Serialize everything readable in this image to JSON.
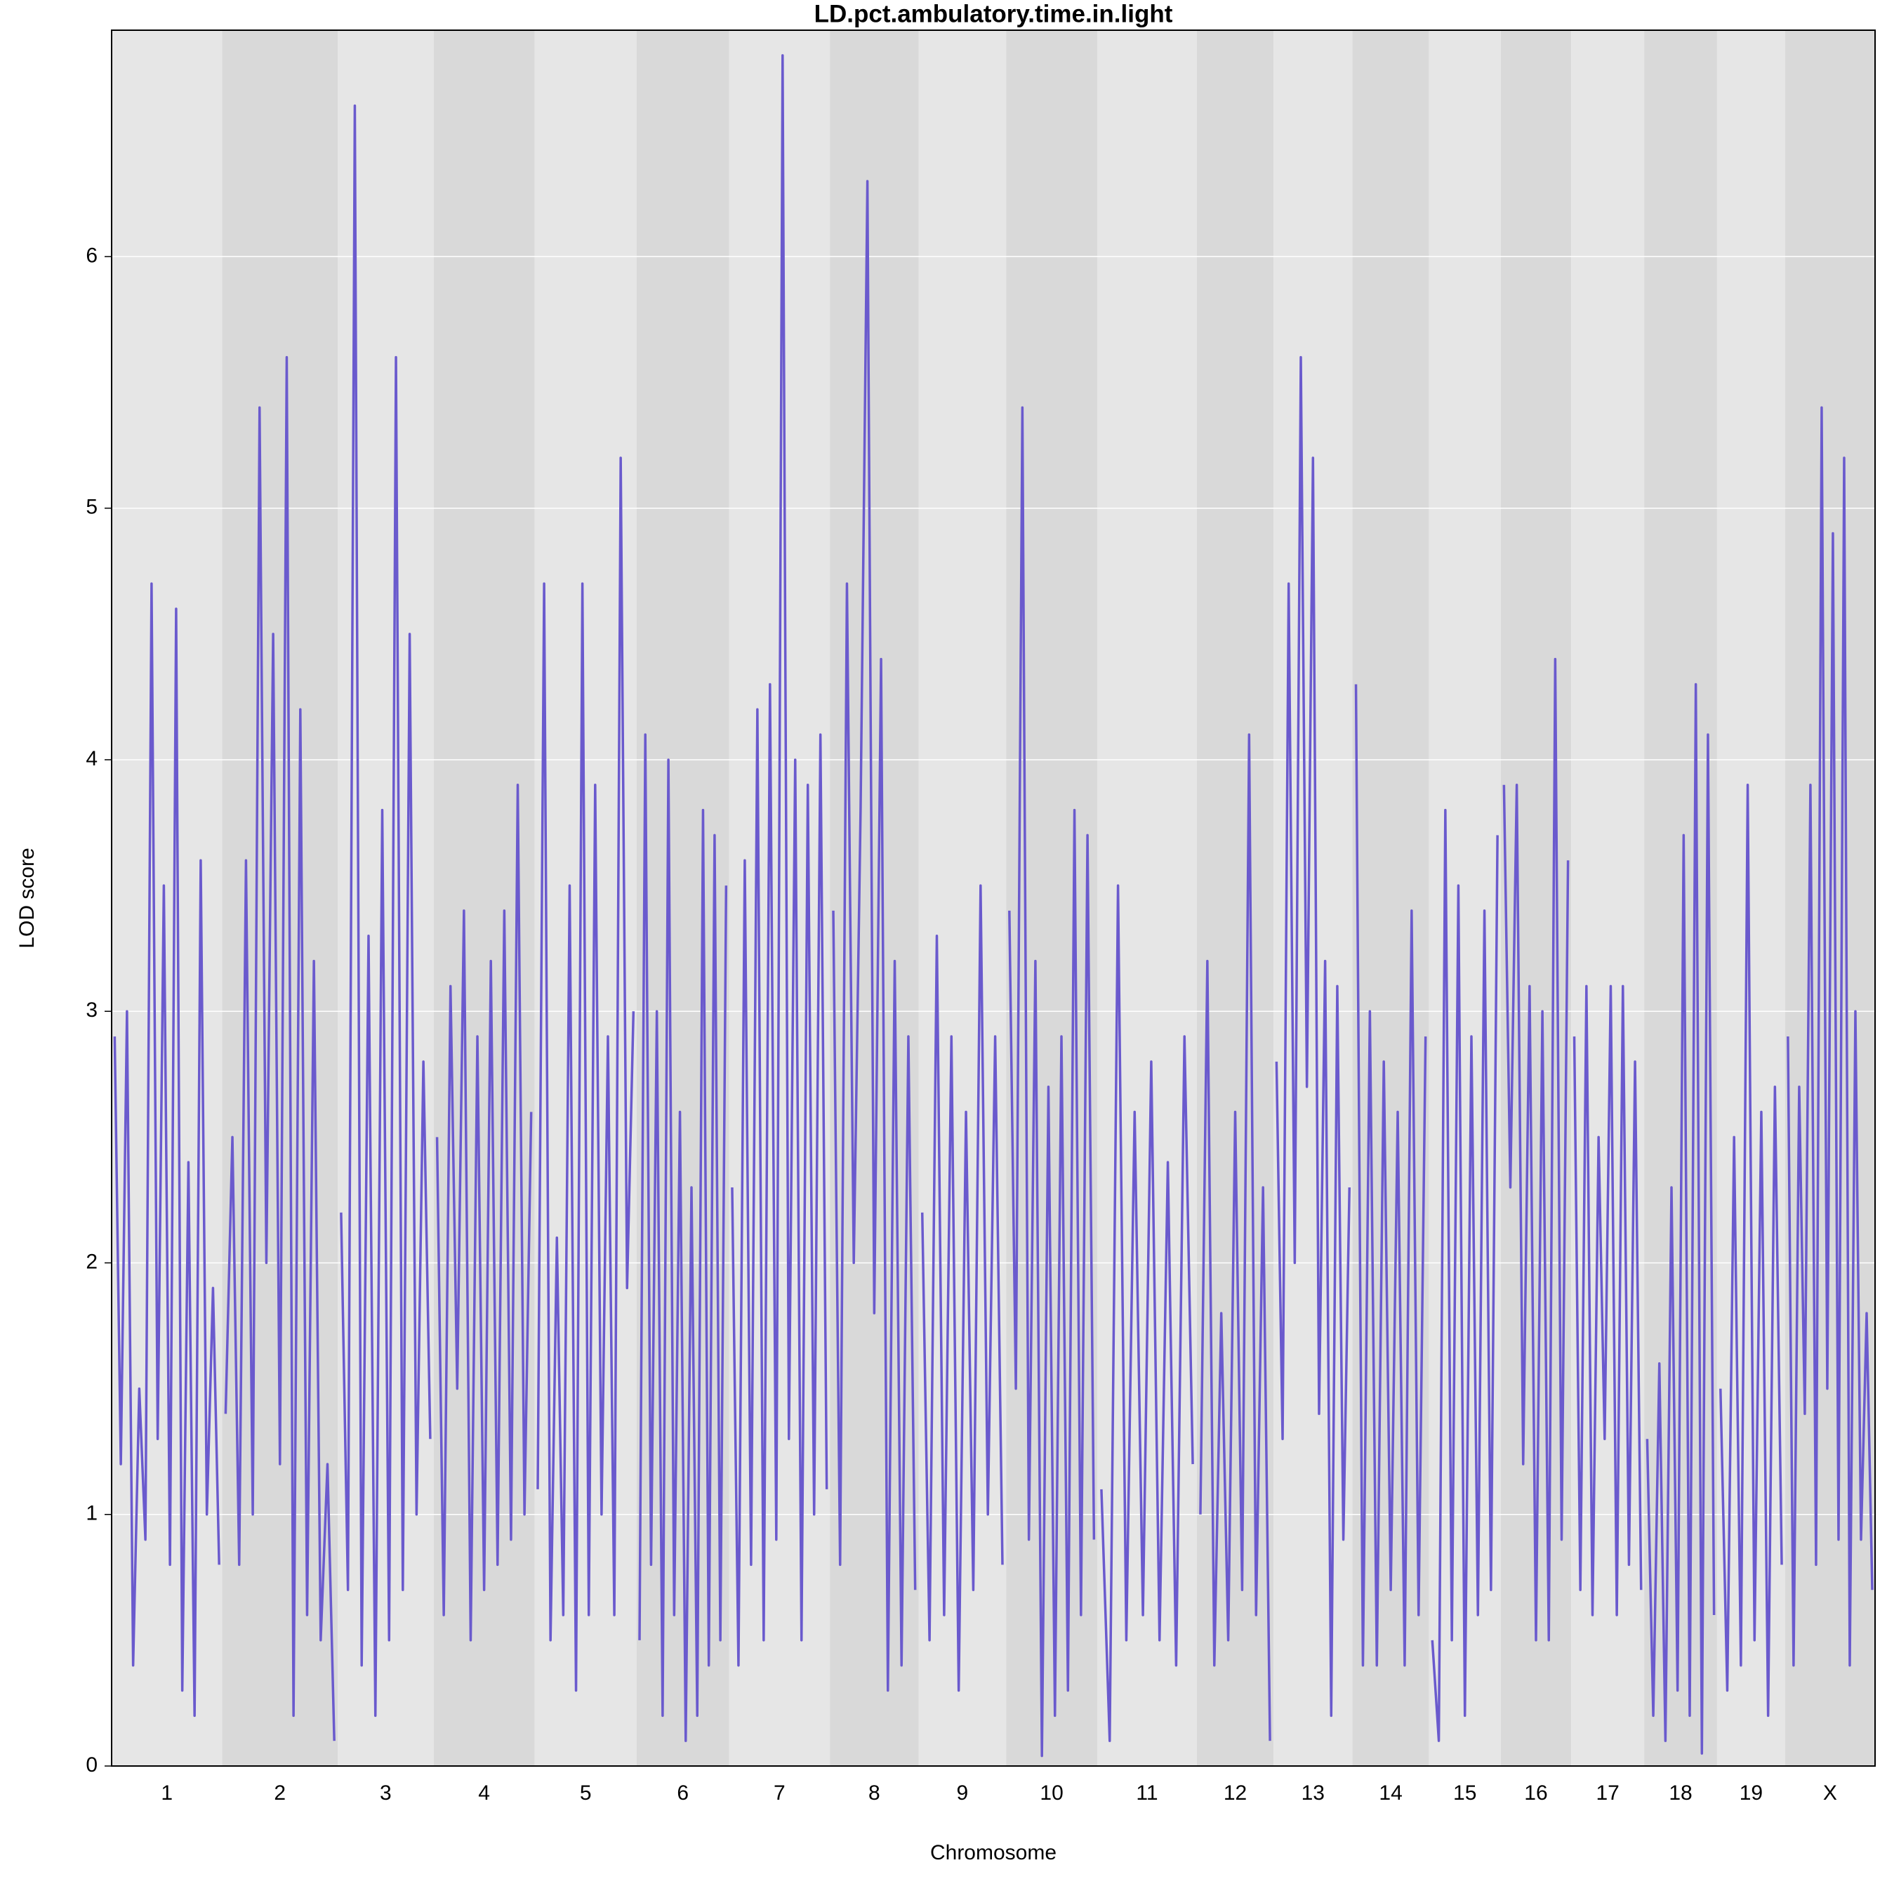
{
  "chart_data": {
    "type": "line",
    "title": "LD.pct.ambulatory.time.in.light",
    "x_label": "Chromosome",
    "y_label": "LOD score",
    "color": "#6a5acd",
    "band_colors": [
      "#e6e6e6",
      "#d9d9d9"
    ],
    "grid": true,
    "ylim": [
      0,
      6.9
    ],
    "yticks": [
      0,
      1,
      2,
      3,
      4,
      5,
      6
    ],
    "chromosomes": [
      {
        "name": "1",
        "length": 91,
        "values": [
          2.9,
          1.2,
          3.0,
          0.4,
          1.5,
          0.9,
          4.7,
          1.3,
          3.5,
          0.8,
          4.6,
          0.3,
          2.4,
          0.2,
          3.6,
          1.0,
          1.9,
          0.8
        ]
      },
      {
        "name": "2",
        "length": 95,
        "values": [
          1.4,
          2.5,
          0.8,
          3.6,
          1.0,
          5.4,
          2.0,
          4.5,
          1.2,
          5.6,
          0.2,
          4.2,
          0.6,
          3.2,
          0.5,
          1.2,
          0.1
        ]
      },
      {
        "name": "3",
        "length": 79,
        "values": [
          2.2,
          0.7,
          6.6,
          0.4,
          3.3,
          0.2,
          3.8,
          0.5,
          5.6,
          0.7,
          4.5,
          1.0,
          2.8,
          1.3
        ]
      },
      {
        "name": "4",
        "length": 83,
        "values": [
          2.5,
          0.6,
          3.1,
          1.5,
          3.4,
          0.5,
          2.9,
          0.7,
          3.2,
          0.8,
          3.4,
          0.9,
          3.9,
          1.0,
          2.6
        ]
      },
      {
        "name": "5",
        "length": 84,
        "values": [
          1.1,
          4.7,
          0.5,
          2.1,
          0.6,
          3.5,
          0.3,
          4.7,
          0.6,
          3.9,
          1.0,
          2.9,
          0.6,
          5.2,
          1.9,
          3.0
        ]
      },
      {
        "name": "6",
        "length": 76,
        "values": [
          0.5,
          4.1,
          0.8,
          3.0,
          0.2,
          4.0,
          0.6,
          2.6,
          0.1,
          2.3,
          0.2,
          3.8,
          0.4,
          3.7,
          0.5,
          3.5
        ]
      },
      {
        "name": "7",
        "length": 83,
        "values": [
          2.3,
          0.4,
          3.6,
          0.8,
          4.2,
          0.5,
          4.3,
          0.9,
          6.8,
          1.3,
          4.0,
          0.5,
          3.9,
          1.0,
          4.1,
          1.1
        ]
      },
      {
        "name": "8",
        "length": 73,
        "values": [
          3.4,
          0.8,
          4.7,
          2.0,
          3.8,
          6.3,
          1.8,
          4.4,
          0.3,
          3.2,
          0.4,
          2.9,
          0.7
        ]
      },
      {
        "name": "9",
        "length": 72,
        "values": [
          2.2,
          0.5,
          3.3,
          0.6,
          2.9,
          0.3,
          2.6,
          0.7,
          3.5,
          1.0,
          2.9,
          0.8
        ]
      },
      {
        "name": "10",
        "length": 75,
        "values": [
          3.4,
          1.5,
          5.4,
          0.9,
          3.2,
          0.04,
          2.7,
          0.2,
          2.9,
          0.3,
          3.8,
          0.6,
          3.7,
          0.9
        ]
      },
      {
        "name": "11",
        "length": 82,
        "values": [
          1.1,
          0.1,
          3.5,
          0.5,
          2.6,
          0.6,
          2.8,
          0.5,
          2.4,
          0.4,
          2.9,
          1.2
        ]
      },
      {
        "name": "12",
        "length": 63,
        "values": [
          1.0,
          3.2,
          0.4,
          1.8,
          0.5,
          2.6,
          0.7,
          4.1,
          0.6,
          2.3,
          0.1
        ]
      },
      {
        "name": "13",
        "length": 65,
        "values": [
          2.8,
          1.3,
          4.7,
          2.0,
          5.6,
          2.7,
          5.2,
          1.4,
          3.2,
          0.2,
          3.1,
          0.9,
          2.3
        ]
      },
      {
        "name": "14",
        "length": 63,
        "values": [
          4.3,
          0.4,
          3.0,
          0.4,
          2.8,
          0.7,
          2.6,
          0.4,
          3.4,
          0.6,
          2.9
        ]
      },
      {
        "name": "15",
        "length": 59,
        "values": [
          0.5,
          0.1,
          3.8,
          0.5,
          3.5,
          0.2,
          2.9,
          0.6,
          3.4,
          0.7,
          3.7
        ]
      },
      {
        "name": "16",
        "length": 58,
        "values": [
          3.9,
          2.3,
          3.9,
          1.2,
          3.1,
          0.5,
          3.0,
          0.5,
          4.4,
          0.9,
          3.6
        ]
      },
      {
        "name": "17",
        "length": 60,
        "values": [
          2.9,
          0.7,
          3.1,
          0.6,
          2.5,
          1.3,
          3.1,
          0.6,
          3.1,
          0.8,
          2.8,
          0.7
        ]
      },
      {
        "name": "18",
        "length": 60,
        "values": [
          1.3,
          0.2,
          1.6,
          0.1,
          2.3,
          0.3,
          3.7,
          0.2,
          4.3,
          0.05,
          4.1,
          0.6
        ]
      },
      {
        "name": "19",
        "length": 56,
        "values": [
          1.5,
          0.3,
          2.5,
          0.4,
          3.9,
          0.5,
          2.6,
          0.2,
          2.7,
          0.8
        ]
      },
      {
        "name": "X",
        "length": 74,
        "values": [
          2.9,
          0.4,
          2.7,
          1.4,
          3.9,
          0.8,
          5.4,
          1.5,
          4.9,
          0.9,
          5.2,
          0.4,
          3.0,
          0.9,
          1.8,
          0.7
        ]
      }
    ]
  }
}
